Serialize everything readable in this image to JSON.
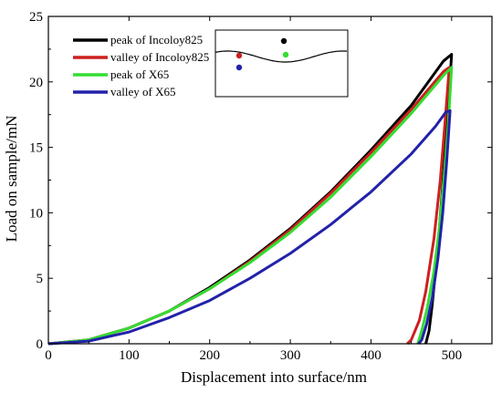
{
  "chart_data": {
    "type": "line",
    "xlabel": "Displacement into surface/nm",
    "ylabel": "Load on sample/mN",
    "xlim": [
      0,
      550
    ],
    "ylim": [
      0,
      25
    ],
    "xticks": [
      0,
      100,
      200,
      300,
      400,
      500
    ],
    "yticks": [
      0,
      5,
      10,
      15,
      20,
      25
    ],
    "grid": false,
    "legend_position": "top-left",
    "series": [
      {
        "name": "peak of Incoloy825",
        "color": "#000000",
        "loading": [
          [
            0,
            0
          ],
          [
            50,
            0.3
          ],
          [
            100,
            1.2
          ],
          [
            150,
            2.5
          ],
          [
            200,
            4.3
          ],
          [
            250,
            6.4
          ],
          [
            300,
            8.8
          ],
          [
            350,
            11.6
          ],
          [
            400,
            14.8
          ],
          [
            450,
            18.2
          ],
          [
            490,
            21.6
          ],
          [
            500,
            22.1
          ]
        ],
        "unloading": [
          [
            500,
            22.1
          ],
          [
            495,
            17.5
          ],
          [
            490,
            13
          ],
          [
            485,
            9
          ],
          [
            480,
            5.5
          ],
          [
            476,
            3
          ],
          [
            472,
            1
          ],
          [
            468,
            0
          ]
        ]
      },
      {
        "name": "valley of Incoloy825",
        "color": "#cc1f1f",
        "loading": [
          [
            0,
            0
          ],
          [
            50,
            0.3
          ],
          [
            100,
            1.2
          ],
          [
            150,
            2.5
          ],
          [
            200,
            4.2
          ],
          [
            250,
            6.3
          ],
          [
            300,
            8.7
          ],
          [
            350,
            11.5
          ],
          [
            400,
            14.6
          ],
          [
            450,
            17.9
          ],
          [
            490,
            20.8
          ],
          [
            497,
            21.1
          ]
        ],
        "unloading": [
          [
            497,
            21.1
          ],
          [
            492,
            17
          ],
          [
            486,
            12.5
          ],
          [
            478,
            8
          ],
          [
            468,
            4
          ],
          [
            460,
            1.8
          ],
          [
            450,
            0.3
          ],
          [
            445,
            0
          ]
        ]
      },
      {
        "name": "peak of X65",
        "color": "#33dd33",
        "loading": [
          [
            0,
            0
          ],
          [
            50,
            0.3
          ],
          [
            100,
            1.2
          ],
          [
            150,
            2.5
          ],
          [
            200,
            4.2
          ],
          [
            250,
            6.2
          ],
          [
            300,
            8.5
          ],
          [
            350,
            11.2
          ],
          [
            400,
            14.3
          ],
          [
            450,
            17.6
          ],
          [
            490,
            20.5
          ],
          [
            500,
            21.1
          ]
        ],
        "unloading": [
          [
            500,
            21.1
          ],
          [
            496,
            17
          ],
          [
            491,
            13
          ],
          [
            485,
            9
          ],
          [
            478,
            5.5
          ],
          [
            470,
            2.8
          ],
          [
            463,
            1
          ],
          [
            458,
            0
          ]
        ]
      },
      {
        "name": "valley of X65",
        "color": "#2222aa",
        "loading": [
          [
            0,
            0
          ],
          [
            50,
            0.2
          ],
          [
            100,
            0.9
          ],
          [
            150,
            2
          ],
          [
            200,
            3.3
          ],
          [
            250,
            5
          ],
          [
            300,
            6.9
          ],
          [
            350,
            9.1
          ],
          [
            400,
            11.6
          ],
          [
            450,
            14.5
          ],
          [
            480,
            16.6
          ],
          [
            493,
            17.7
          ],
          [
            498,
            17.8
          ]
        ],
        "unloading": [
          [
            498,
            17.8
          ],
          [
            494,
            14
          ],
          [
            489,
            10
          ],
          [
            483,
            6.5
          ],
          [
            476,
            3.5
          ],
          [
            469,
            1.5
          ],
          [
            463,
            0.3
          ],
          [
            459,
            0
          ]
        ]
      }
    ],
    "inset": {
      "points": [
        {
          "color": "#000000"
        },
        {
          "color": "#cc1f1f"
        },
        {
          "color": "#33dd33"
        },
        {
          "color": "#2222aa"
        }
      ]
    }
  }
}
